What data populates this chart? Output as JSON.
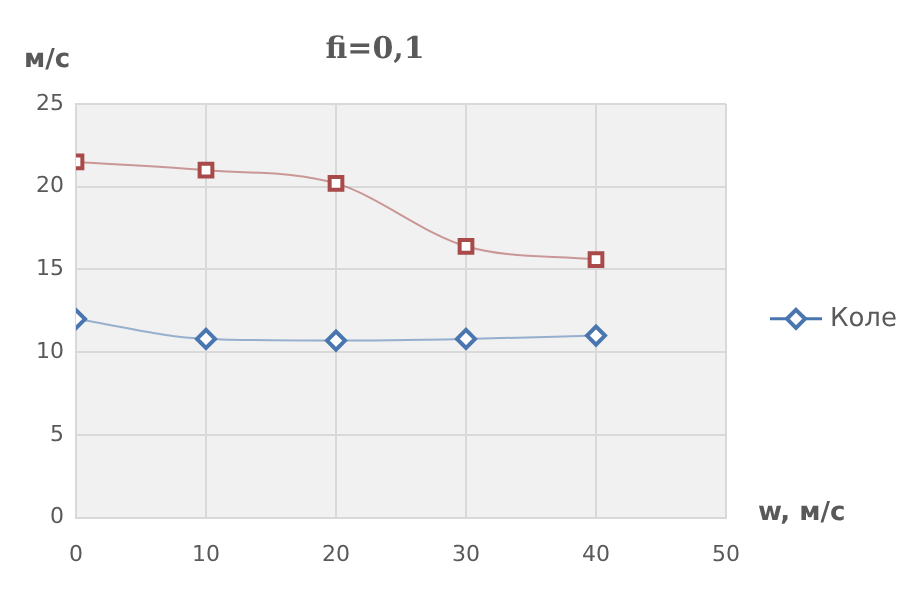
{
  "chart_data": {
    "type": "line",
    "title": "fi=0,1",
    "xlabel": "w, м/с",
    "ylabel": "м/с",
    "x": [
      0,
      10,
      20,
      30,
      40
    ],
    "series": [
      {
        "name": "Коле",
        "color": "#4a76b0",
        "marker": "diamond",
        "values": [
          12.0,
          10.8,
          10.7,
          10.8,
          11.0
        ]
      },
      {
        "color": "#a84a4a",
        "marker": "square",
        "values": [
          21.5,
          21.0,
          20.2,
          16.4,
          15.6
        ]
      }
    ],
    "xlim": [
      0,
      50
    ],
    "xticks": [
      0,
      10,
      20,
      30,
      40,
      50
    ],
    "ylim": [
      0,
      25
    ],
    "yticks": [
      0,
      5,
      10,
      15,
      20,
      25
    ],
    "grid": true,
    "legend": "right"
  }
}
